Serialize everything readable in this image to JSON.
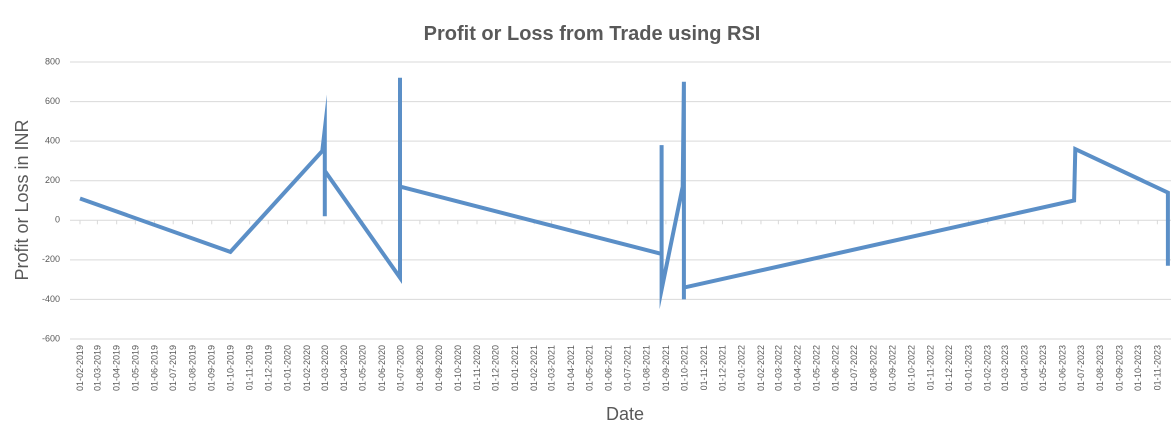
{
  "chart_data": {
    "type": "line",
    "title": "Profit or Loss from Trade using RSI",
    "ylabel": "Profit or Loss in INR",
    "xlabel": "Date",
    "ylim": [
      -600,
      800
    ],
    "yticks": [
      -600,
      -400,
      -200,
      0,
      200,
      400,
      600,
      800
    ],
    "xlim": [
      "01-02-2019",
      "01-12-2023"
    ],
    "xticks": [
      "01-02-2019",
      "01-03-2019",
      "01-04-2019",
      "01-05-2019",
      "01-06-2019",
      "01-07-2019",
      "01-08-2019",
      "01-09-2019",
      "01-10-2019",
      "01-11-2019",
      "01-12-2019",
      "01-01-2020",
      "01-02-2020",
      "01-03-2020",
      "01-04-2020",
      "01-05-2020",
      "01-06-2020",
      "01-07-2020",
      "01-08-2020",
      "01-09-2020",
      "01-10-2020",
      "01-11-2020",
      "01-12-2020",
      "01-01-2021",
      "01-02-2021",
      "01-03-2021",
      "01-04-2021",
      "01-05-2021",
      "01-06-2021",
      "01-07-2021",
      "01-08-2021",
      "01-09-2021",
      "01-10-2021",
      "01-11-2021",
      "01-12-2021",
      "01-01-2022",
      "01-02-2022",
      "01-03-2022",
      "01-04-2022",
      "01-05-2022",
      "01-06-2022",
      "01-07-2022",
      "01-08-2022",
      "01-09-2022",
      "01-10-2022",
      "01-11-2022",
      "01-12-2022",
      "01-01-2023",
      "01-02-2023",
      "01-03-2023",
      "01-04-2023",
      "01-05-2023",
      "01-06-2023",
      "01-07-2023",
      "01-08-2023",
      "01-09-2023",
      "01-10-2023",
      "01-11-2023",
      "01-12-2023"
    ],
    "grid": true,
    "series": [
      {
        "color": "#5b8fc7",
        "x": [
          "01-02-2019",
          "01-10-2019",
          "26-02-2020",
          "01-03-2020",
          "01-03-2020",
          "01-03-2020",
          "30-06-2020",
          "30-06-2020",
          "30-06-2020",
          "25-08-2021",
          "25-08-2021",
          "25-08-2021",
          "28-09-2021",
          "30-09-2021",
          "30-09-2021",
          "30-09-2021",
          "20-06-2023",
          "22-06-2023",
          "18-11-2023",
          "18-11-2023"
        ],
        "values": [
          110,
          -160,
          350,
          460,
          20,
          250,
          -290,
          720,
          170,
          -170,
          380,
          -350,
          170,
          700,
          -400,
          -340,
          100,
          360,
          140,
          -230
        ]
      }
    ]
  }
}
